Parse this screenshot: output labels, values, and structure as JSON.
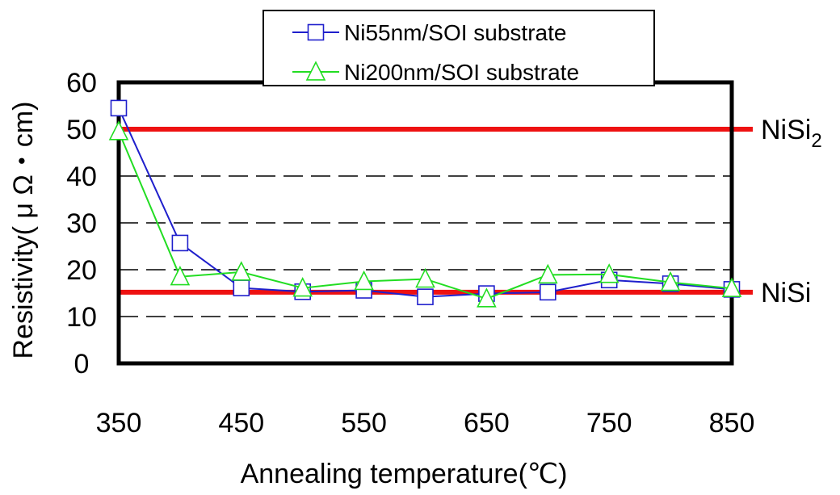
{
  "chart_data": {
    "type": "line",
    "xlabel": "Annealing temperature(℃)",
    "ylabel": "Resistivity( μ Ω・cm)",
    "x": [
      350,
      400,
      450,
      500,
      550,
      600,
      650,
      700,
      750,
      800,
      850
    ],
    "xticks": [
      "350",
      "450",
      "550",
      "650",
      "750",
      "850"
    ],
    "xtick_values": [
      350,
      450,
      550,
      650,
      750,
      850
    ],
    "yticks": [
      "0",
      "10",
      "20",
      "30",
      "40",
      "50",
      "60"
    ],
    "ytick_values": [
      0,
      10,
      20,
      30,
      40,
      50,
      60
    ],
    "xlim": [
      350,
      850
    ],
    "ylim": [
      0,
      60
    ],
    "grid": "horizontal dashed",
    "legend_position": "top-center",
    "series": [
      {
        "name": "Ni55nm/SOI substrate",
        "marker": "square",
        "color": "#1f1fcc",
        "values": [
          54.5,
          25.7,
          16.1,
          15.3,
          15.6,
          14.2,
          14.9,
          15.2,
          17.8,
          17.0,
          15.8
        ]
      },
      {
        "name": "Ni200nm/SOI substrate",
        "marker": "triangle",
        "color": "#22dd22",
        "values": [
          49.5,
          18.5,
          19.5,
          16.1,
          17.5,
          18.0,
          13.8,
          18.9,
          19.0,
          17.3,
          16.0
        ]
      }
    ],
    "reference_lines": [
      {
        "label": "NiSi",
        "label_sub": "2",
        "label_main": "NiSi",
        "value": 50,
        "color": "#ee1111"
      },
      {
        "label": "NiSi",
        "label_sub": "",
        "label_main": "NiSi",
        "value": 15.2,
        "color": "#ee1111"
      }
    ]
  }
}
